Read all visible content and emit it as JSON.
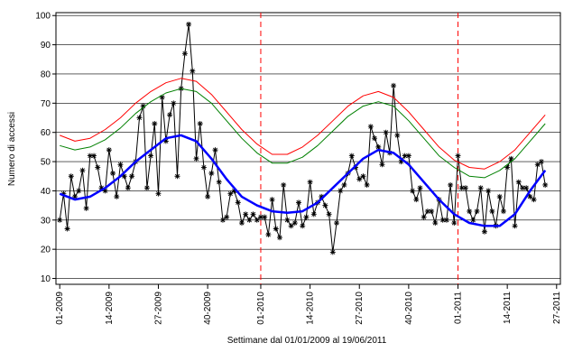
{
  "chart_data": {
    "type": "line",
    "x_label": "Settimane dal 01/01/2009 al 19/06/2011",
    "y_label": "Numero di accessi",
    "x": [
      0,
      1,
      2,
      3,
      4,
      5,
      6,
      7,
      8,
      9,
      10,
      11,
      12,
      13,
      14,
      15,
      16,
      17,
      18,
      19,
      20,
      21,
      22,
      23,
      24,
      25,
      26,
      27,
      28,
      29,
      30,
      31,
      32,
      33,
      34,
      35,
      36,
      37,
      38,
      39,
      40,
      41,
      42,
      43,
      44,
      45,
      46,
      47,
      48,
      49,
      50,
      51,
      52,
      53,
      54,
      55,
      56,
      57,
      58,
      59,
      60,
      61,
      62,
      63,
      64,
      65,
      66,
      67,
      68,
      69,
      70,
      71,
      72,
      73,
      74,
      75,
      76,
      77,
      78,
      79,
      80,
      81,
      82,
      83,
      84,
      85,
      86,
      87,
      88,
      89,
      90,
      91,
      92,
      93,
      94,
      95,
      96,
      97,
      98,
      99,
      100,
      101,
      102,
      103,
      104,
      105,
      106,
      107,
      108,
      109,
      110,
      111,
      112,
      113,
      114,
      115,
      116,
      117,
      118,
      119,
      120,
      121,
      122,
      123,
      124,
      125,
      126,
      127,
      128
    ],
    "xlim": [
      -1,
      132
    ],
    "xticks": [
      {
        "value": 0,
        "label": "01-2009"
      },
      {
        "value": 13,
        "label": "14-2009"
      },
      {
        "value": 26,
        "label": "27-2009"
      },
      {
        "value": 39,
        "label": "40-2009"
      },
      {
        "value": 53,
        "label": "01-2010"
      },
      {
        "value": 66,
        "label": "14-2010"
      },
      {
        "value": 79,
        "label": "27-2010"
      },
      {
        "value": 92,
        "label": "40-2010"
      },
      {
        "value": 105,
        "label": "01-2011"
      },
      {
        "value": 118,
        "label": "14-2011"
      },
      {
        "value": 131,
        "label": "27-2011"
      }
    ],
    "ylim": [
      8,
      101
    ],
    "yticks": [
      10,
      20,
      30,
      40,
      50,
      60,
      70,
      80,
      90,
      100
    ],
    "grid": true,
    "vlines": [
      53,
      105
    ],
    "vline_color": "#ff0000",
    "series": [
      {
        "color": "#000000",
        "marker": "asterisk",
        "line_width": 1,
        "values": [
          30,
          39,
          27,
          45,
          38,
          40,
          47,
          34,
          52,
          52,
          48,
          41,
          40,
          54,
          46,
          38,
          49,
          45,
          41,
          45,
          50,
          65,
          69,
          41,
          52,
          63,
          39,
          72,
          57,
          66,
          70,
          45,
          75,
          87,
          97,
          81,
          51,
          63,
          48,
          38,
          46,
          54,
          43,
          30,
          31,
          39,
          40,
          36,
          29,
          32,
          30,
          32,
          30,
          31,
          31,
          25,
          37,
          27,
          24,
          42,
          30,
          28,
          29,
          36,
          28,
          31,
          43,
          32,
          36,
          38,
          35,
          32,
          19,
          29,
          40,
          42,
          46,
          52,
          48,
          44,
          45,
          42,
          62,
          58,
          55,
          49,
          60,
          53,
          76,
          59,
          50,
          52,
          52,
          40,
          37,
          41,
          31,
          33,
          33,
          29,
          37,
          30,
          30,
          42,
          29,
          52,
          41,
          41,
          33,
          30,
          33,
          41,
          26,
          40,
          33,
          28,
          38,
          33,
          48,
          51,
          28,
          43,
          41,
          41,
          38,
          37,
          49,
          50,
          42
        ]
      },
      {
        "color": "#ff0000",
        "line_width": 1,
        "x": [
          0,
          4,
          8,
          12,
          16,
          20,
          24,
          28,
          32,
          36,
          40,
          44,
          48,
          52,
          56,
          60,
          64,
          68,
          72,
          76,
          80,
          84,
          88,
          92,
          96,
          100,
          104,
          108,
          112,
          116,
          120,
          124,
          128
        ],
        "values": [
          59,
          57,
          58,
          61,
          65,
          70,
          74,
          77,
          78.5,
          77.5,
          73,
          67,
          61,
          56,
          52.5,
          52.5,
          55,
          59,
          64,
          69,
          72.5,
          74,
          72,
          67,
          61,
          55,
          50.5,
          48,
          47.5,
          50,
          54,
          60,
          66
        ]
      },
      {
        "color": "#008000",
        "line_width": 1,
        "x": [
          0,
          4,
          8,
          12,
          16,
          20,
          24,
          28,
          32,
          36,
          40,
          44,
          48,
          52,
          56,
          60,
          64,
          68,
          72,
          76,
          80,
          84,
          88,
          92,
          96,
          100,
          104,
          108,
          112,
          116,
          120,
          124,
          128
        ],
        "values": [
          55.5,
          54,
          55,
          57.5,
          61.5,
          66.5,
          70.5,
          73.5,
          75,
          74,
          70,
          64,
          58,
          53,
          49.5,
          49.5,
          51.5,
          55.5,
          60.5,
          65.5,
          69,
          70.5,
          69,
          64,
          58,
          52,
          48,
          45,
          44.5,
          47,
          51,
          57,
          63
        ]
      },
      {
        "color": "#0000ff",
        "line_width": 2.5,
        "x": [
          0,
          4,
          8,
          12,
          16,
          20,
          24,
          28,
          32,
          36,
          40,
          44,
          48,
          52,
          56,
          60,
          64,
          68,
          72,
          76,
          80,
          84,
          88,
          92,
          96,
          100,
          104,
          108,
          112,
          116,
          120,
          124,
          128
        ],
        "values": [
          39,
          37,
          38,
          41,
          45,
          50,
          54,
          58,
          59,
          57,
          51,
          44,
          38,
          35,
          33,
          32.5,
          33,
          36,
          41,
          46,
          51,
          54,
          53,
          49,
          43,
          37,
          32,
          29,
          28,
          28,
          32,
          40,
          47
        ]
      }
    ]
  }
}
